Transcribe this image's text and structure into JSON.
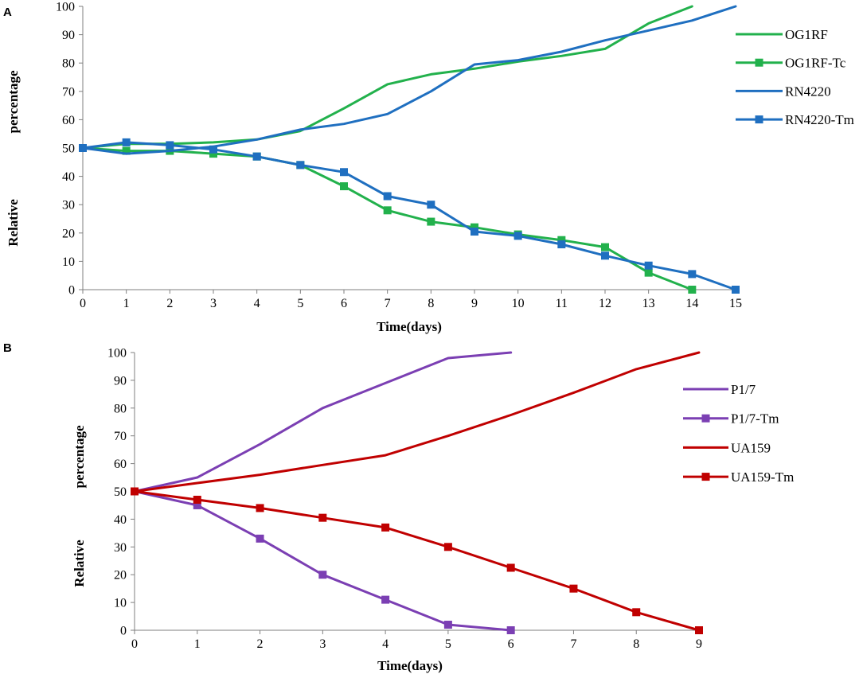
{
  "chart_data": [
    {
      "panel_label": "A",
      "type": "line",
      "xlabel": "Time(days)",
      "ylabel_words": [
        "Relative",
        "percentage"
      ],
      "xlim": [
        0,
        15
      ],
      "ylim": [
        0,
        100
      ],
      "x_ticks": [
        0,
        1,
        2,
        3,
        4,
        5,
        6,
        7,
        8,
        9,
        10,
        11,
        12,
        13,
        14,
        15
      ],
      "y_ticks": [
        0,
        10,
        20,
        30,
        40,
        50,
        60,
        70,
        80,
        90,
        100
      ],
      "legend_position": "right",
      "series": [
        {
          "name": "OG1RF",
          "color": "#22b14c",
          "marker": "none",
          "x": [
            0,
            1,
            2,
            3,
            4,
            5,
            6,
            7,
            8,
            9,
            10,
            11,
            12,
            13,
            14
          ],
          "y": [
            50,
            51.5,
            51.5,
            52,
            53,
            56,
            64,
            72.5,
            76,
            78,
            80.5,
            82.5,
            85,
            94,
            100
          ]
        },
        {
          "name": "OG1RF-Tc",
          "color": "#22b14c",
          "marker": "square",
          "x": [
            0,
            1,
            2,
            3,
            4,
            5,
            6,
            7,
            8,
            9,
            10,
            11,
            12,
            13,
            14
          ],
          "y": [
            50,
            49,
            49,
            48,
            47,
            44,
            36.5,
            28,
            24,
            22,
            19.5,
            17.5,
            15,
            6,
            0
          ]
        },
        {
          "name": "RN4220",
          "color": "#1f6fc0",
          "marker": "none",
          "x": [
            0,
            1,
            2,
            3,
            4,
            5,
            6,
            7,
            8,
            9,
            10,
            11,
            12,
            13,
            14,
            15
          ],
          "y": [
            50,
            48,
            49,
            50.5,
            53,
            56.5,
            58.5,
            62,
            70,
            79.5,
            81,
            84,
            88,
            91.5,
            95,
            100
          ]
        },
        {
          "name": "RN4220-Tm",
          "color": "#1f6fc0",
          "marker": "square",
          "x": [
            0,
            1,
            2,
            3,
            4,
            5,
            6,
            7,
            8,
            9,
            10,
            11,
            12,
            13,
            14,
            15
          ],
          "y": [
            50,
            52,
            51,
            49.5,
            47,
            44,
            41.5,
            33,
            30,
            20.5,
            19,
            16,
            12,
            8.5,
            5.5,
            0
          ]
        }
      ]
    },
    {
      "panel_label": "B",
      "type": "line",
      "xlabel": "Time(days)",
      "ylabel_words": [
        "Relative",
        "percentage"
      ],
      "xlim": [
        0,
        9
      ],
      "ylim": [
        0,
        100
      ],
      "x_ticks": [
        0,
        1,
        2,
        3,
        4,
        5,
        6,
        7,
        8,
        9
      ],
      "y_ticks": [
        0,
        10,
        20,
        30,
        40,
        50,
        60,
        70,
        80,
        90,
        100
      ],
      "legend_position": "right",
      "series": [
        {
          "name": "P1/7",
          "color": "#7b3fb3",
          "marker": "none",
          "x": [
            0,
            1,
            2,
            3,
            4,
            5,
            6
          ],
          "y": [
            50,
            55,
            67,
            80,
            89,
            98,
            100
          ]
        },
        {
          "name": "P1/7-Tm",
          "color": "#7b3fb3",
          "marker": "square",
          "x": [
            0,
            1,
            2,
            3,
            4,
            5,
            6
          ],
          "y": [
            50,
            45,
            33,
            20,
            11,
            2,
            0
          ]
        },
        {
          "name": "UA159",
          "color": "#c00000",
          "marker": "none",
          "x": [
            0,
            1,
            2,
            3,
            4,
            5,
            6,
            7,
            8,
            9
          ],
          "y": [
            50,
            53,
            56,
            59.5,
            63,
            70,
            77.5,
            85.5,
            94,
            100
          ]
        },
        {
          "name": "UA159-Tm",
          "color": "#c00000",
          "marker": "square",
          "x": [
            0,
            1,
            2,
            3,
            4,
            5,
            6,
            7,
            8,
            9
          ],
          "y": [
            50,
            47,
            44,
            40.5,
            37,
            30,
            22.5,
            15,
            6.5,
            0
          ]
        }
      ]
    }
  ]
}
